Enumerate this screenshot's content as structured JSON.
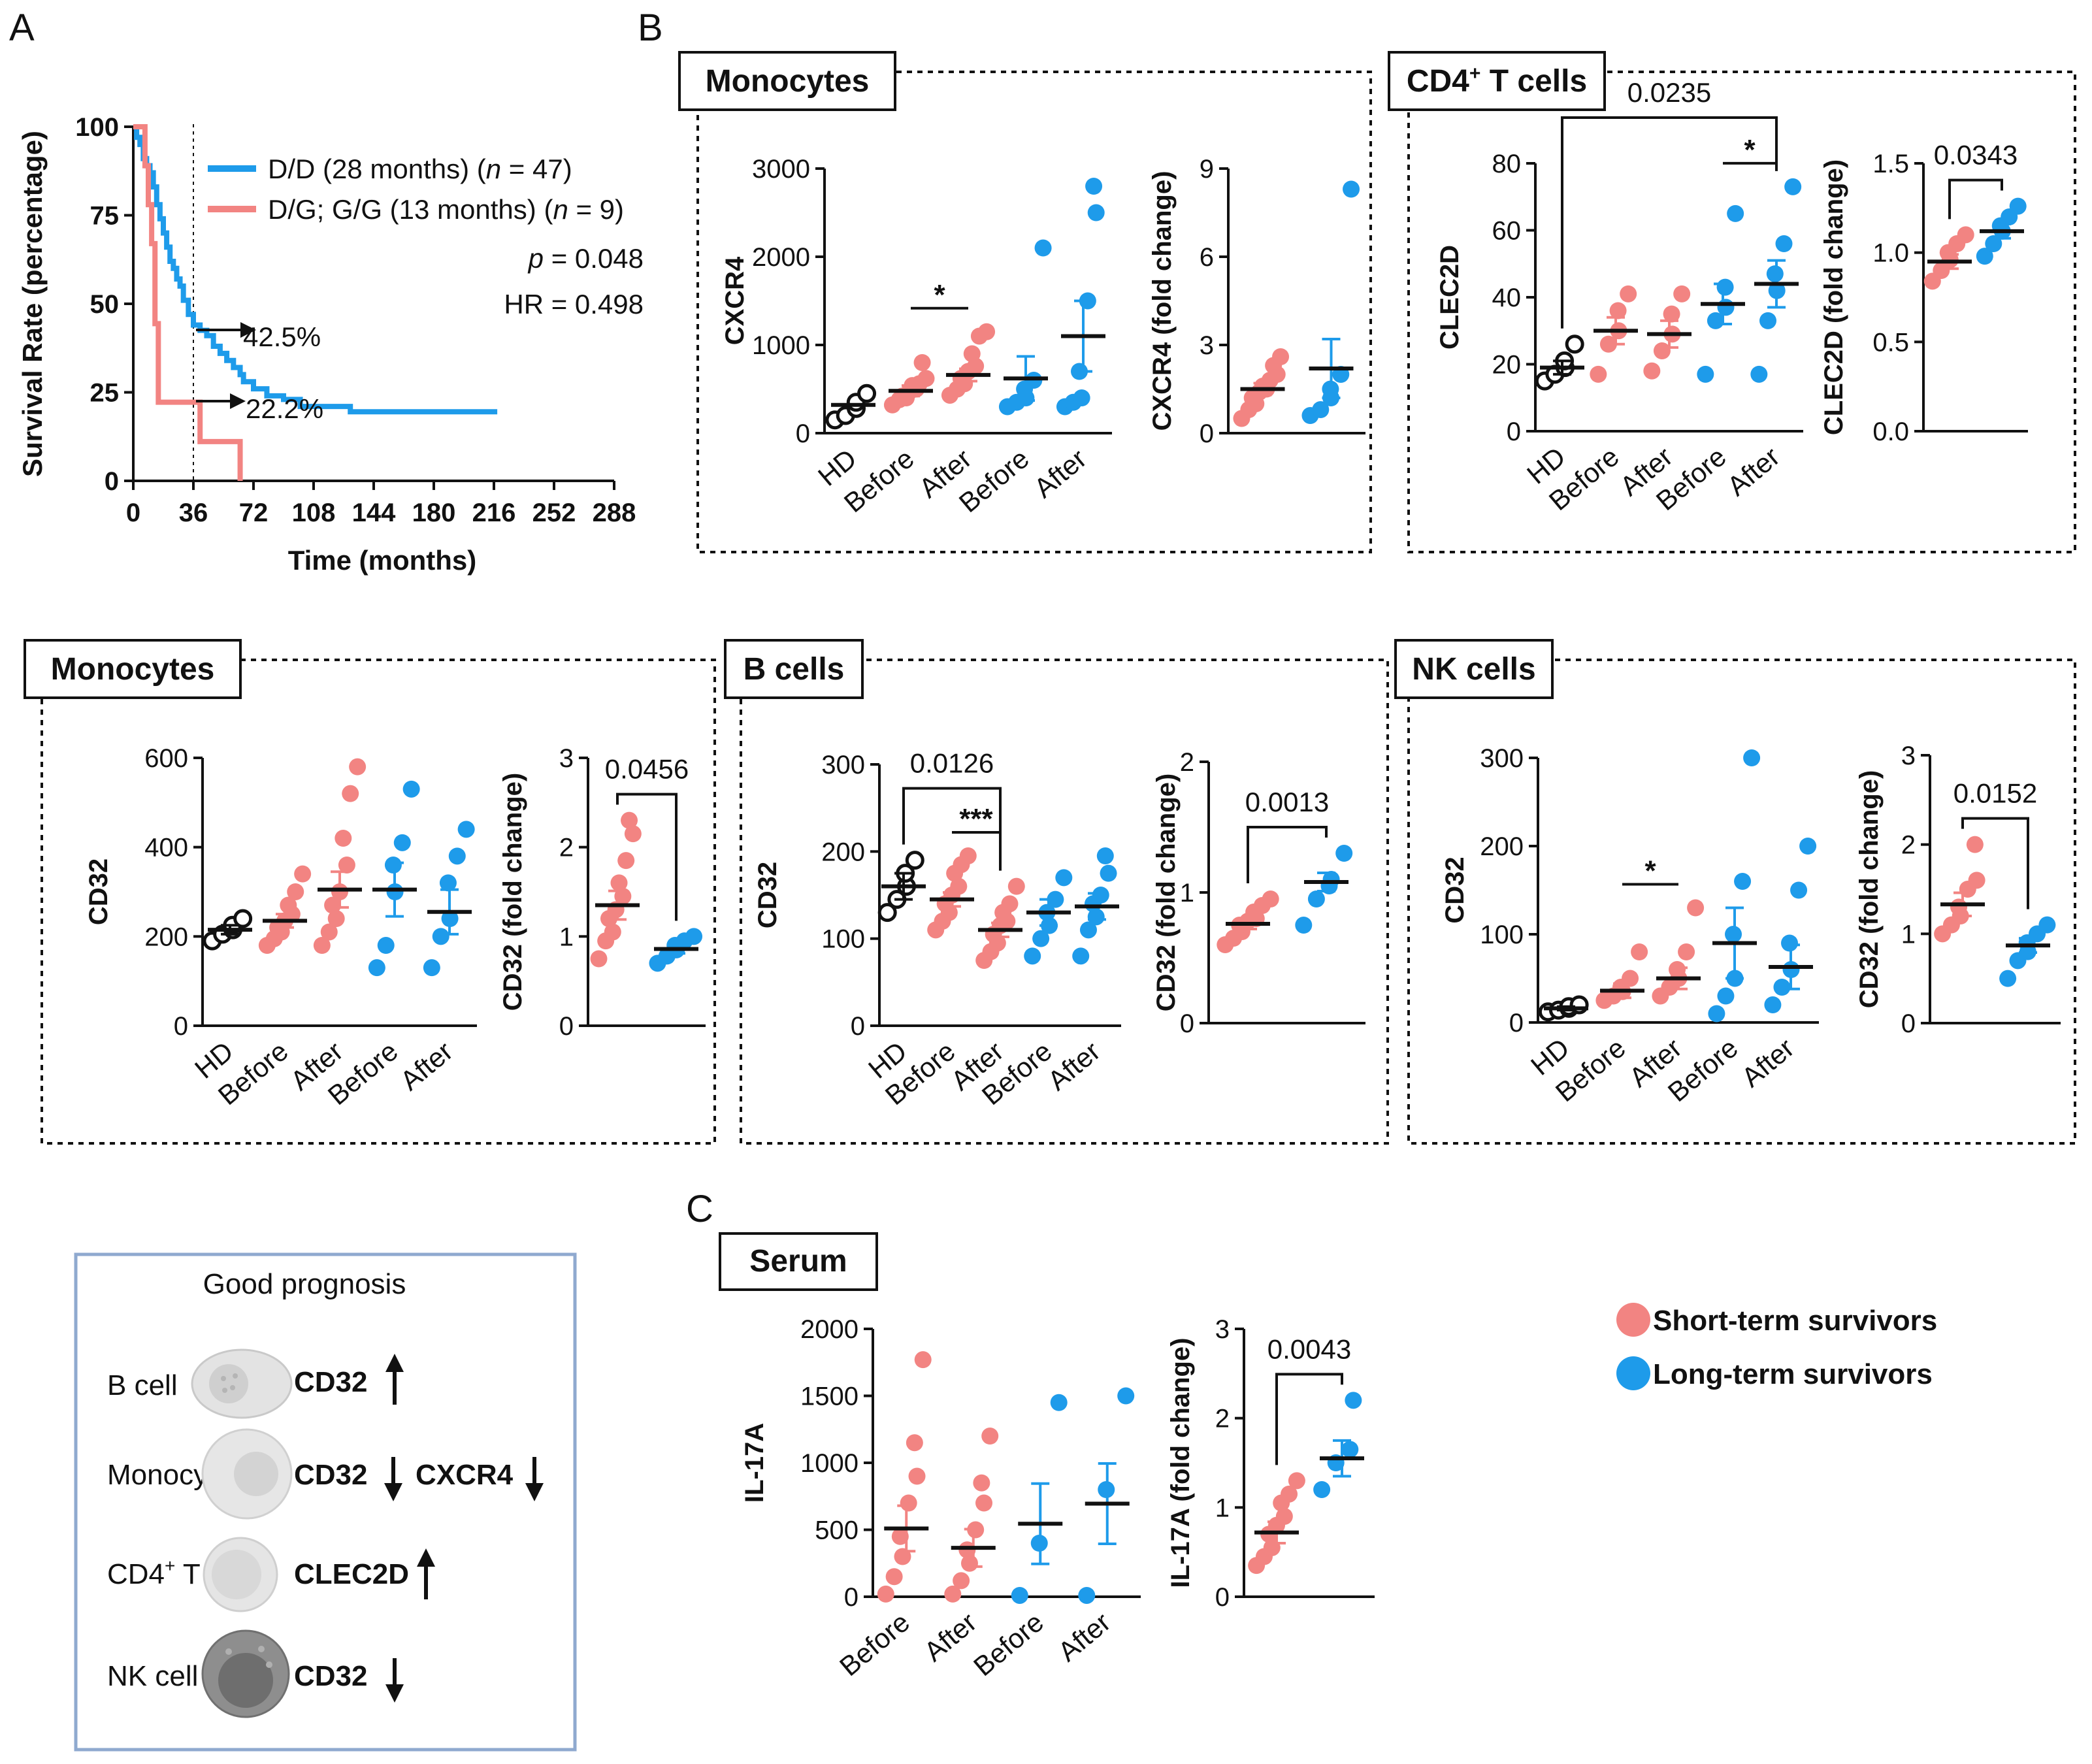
{
  "colors": {
    "short": "#F28482",
    "long": "#1E9BEA",
    "hd": "#111111",
    "frame_blue": "#8FA9CF"
  },
  "panel_labels": {
    "a": "A",
    "b": "B",
    "c": "C"
  },
  "panelA": {
    "chart_type": "step",
    "y_label": "Survival Rate (percentage)",
    "x_label": "Time (months)",
    "x_ticks": [
      "0",
      "36",
      "72",
      "108",
      "144",
      "180",
      "216",
      "252",
      "288"
    ],
    "y_ticks": [
      "0",
      "25",
      "50",
      "75",
      "100"
    ],
    "legend": [
      {
        "prefix": "D/D (28 months) (",
        "n": "n",
        "suffix": " = 47)"
      },
      {
        "prefix": "D/G; G/G (13 months) (",
        "n": "n",
        "suffix": " = 9)"
      }
    ],
    "p_value": {
      "label": "p",
      "value": " = 0.048"
    },
    "hr": "HR = 0.498",
    "annotations": [
      "42.5%",
      "22.2%"
    ],
    "series": [
      {
        "name": "D/D (28 months)",
        "color": "long",
        "steps": [
          [
            0,
            100
          ],
          [
            2,
            97
          ],
          [
            4,
            95
          ],
          [
            6,
            91
          ],
          [
            8,
            89
          ],
          [
            10,
            87
          ],
          [
            12,
            83
          ],
          [
            14,
            78
          ],
          [
            16,
            74
          ],
          [
            18,
            70
          ],
          [
            20,
            66
          ],
          [
            22,
            62
          ],
          [
            24,
            60
          ],
          [
            26,
            57
          ],
          [
            28,
            55
          ],
          [
            30,
            51
          ],
          [
            33,
            47
          ],
          [
            36,
            44
          ],
          [
            40,
            42.5
          ],
          [
            44,
            41
          ],
          [
            48,
            38
          ],
          [
            52,
            36
          ],
          [
            56,
            34
          ],
          [
            60,
            32
          ],
          [
            64,
            30
          ],
          [
            66,
            28
          ],
          [
            72,
            26
          ],
          [
            76,
            26
          ],
          [
            80,
            24
          ],
          [
            86,
            24
          ],
          [
            90,
            23
          ],
          [
            96,
            23
          ],
          [
            100,
            21
          ],
          [
            110,
            21
          ],
          [
            115,
            21
          ],
          [
            120,
            21
          ],
          [
            125,
            21
          ],
          [
            130,
            19.5
          ],
          [
            140,
            19.5
          ],
          [
            160,
            19.5
          ],
          [
            180,
            19.5
          ],
          [
            200,
            19.5
          ],
          [
            218,
            19.5
          ]
        ]
      },
      {
        "name": "D/G; G/G (13 months)",
        "color": "short",
        "steps": [
          [
            0,
            100
          ],
          [
            5,
            100
          ],
          [
            7,
            89
          ],
          [
            9,
            78
          ],
          [
            11,
            67
          ],
          [
            13,
            44.4
          ],
          [
            15,
            22.2
          ],
          [
            36,
            22.2
          ],
          [
            40,
            11.1
          ],
          [
            62,
            11.1
          ],
          [
            64,
            0
          ]
        ]
      }
    ]
  },
  "charts": [
    {
      "id": "mono_cxcr4",
      "group": "Monocytes",
      "ylabel": "CXCR4",
      "ylim": [
        0,
        3000
      ],
      "yticks": [
        "0",
        "1000",
        "2000",
        "3000"
      ],
      "categories": [
        "HD",
        "Before",
        "After",
        "Before",
        "After"
      ],
      "points": [
        [
          150,
          200,
          280,
          350,
          450
        ],
        [
          320,
          380,
          400,
          420,
          470,
          500,
          540,
          560,
          620,
          800
        ],
        [
          430,
          500,
          560,
          620,
          700,
          760,
          900,
          1100,
          1150
        ],
        [
          300,
          350,
          400,
          500,
          600,
          2100
        ],
        [
          300,
          350,
          400,
          700,
          1500,
          2500,
          2800
        ]
      ],
      "means": [
        320,
        480,
        660,
        620,
        1100
      ],
      "sems": [
        null,
        60,
        70,
        250,
        400
      ],
      "sig": [
        {
          "a": 1,
          "b": 2,
          "label": "*"
        }
      ]
    },
    {
      "id": "mono_cxcr4_fc",
      "group": "Monocytes",
      "ylabel": "CXCR4 (fold change)",
      "ylim": [
        0,
        9
      ],
      "yticks": [
        "0",
        "3",
        "6",
        "9"
      ],
      "categories": [
        "",
        ""
      ],
      "points": [
        [
          0.5,
          0.8,
          1.0,
          1.2,
          1.4,
          1.5,
          1.6,
          1.8,
          2.0,
          2.3,
          2.6
        ],
        [
          0.6,
          0.8,
          1.2,
          1.5,
          2.0,
          8.3
        ]
      ],
      "means": [
        1.5,
        2.2
      ],
      "sems": [
        0.2,
        1.0
      ],
      "sig": []
    },
    {
      "id": "cd4_clec2d",
      "group": "CD4+ T cells",
      "ylabel": "CLEC2D",
      "ylim": [
        0,
        80
      ],
      "yticks": [
        "0",
        "20",
        "40",
        "60",
        "80"
      ],
      "categories": [
        "HD",
        "Before",
        "After",
        "Before",
        "After"
      ],
      "points": [
        [
          15,
          17,
          19,
          21,
          26
        ],
        [
          17,
          26,
          30,
          36,
          41
        ],
        [
          18,
          24,
          29,
          35,
          41
        ],
        [
          17,
          33,
          37,
          43,
          65
        ],
        [
          17,
          33,
          42,
          47,
          56,
          73
        ]
      ],
      "means": [
        19,
        30,
        29,
        38,
        44
      ],
      "sems": [
        2,
        4,
        4,
        6,
        7
      ],
      "sig": [
        {
          "a": 3,
          "b": 4,
          "label": "*"
        }
      ],
      "bracket": {
        "a": 0,
        "b": 4,
        "label": "0.0235"
      }
    },
    {
      "id": "cd4_clec2d_fc",
      "group": "CD4+ T cells",
      "ylabel": "CLEC2D (fold change)",
      "ylim": [
        0,
        1.5
      ],
      "yticks": [
        "0.0",
        "0.5",
        "1.0",
        "1.5"
      ],
      "categories": [
        "",
        ""
      ],
      "points": [
        [
          0.84,
          0.9,
          0.96,
          1.0,
          1.05,
          1.1
        ],
        [
          0.98,
          1.05,
          1.12,
          1.15,
          1.2,
          1.26
        ]
      ],
      "means": [
        0.95,
        1.12
      ],
      "sems": [
        0.04,
        0.04
      ],
      "bracket": {
        "a": 0,
        "b": 1,
        "label": "0.0343"
      }
    },
    {
      "id": "mono_cd32",
      "group": "Monocytes",
      "ylabel": "CD32",
      "ylim": [
        0,
        600
      ],
      "yticks": [
        "0",
        "200",
        "400",
        "600"
      ],
      "categories": [
        "HD",
        "Before",
        "After",
        "Before",
        "After"
      ],
      "points": [
        [
          190,
          205,
          215,
          225,
          240
        ],
        [
          180,
          195,
          210,
          220,
          235,
          250,
          270,
          300,
          340
        ],
        [
          180,
          210,
          240,
          270,
          300,
          360,
          420,
          520,
          580
        ],
        [
          130,
          180,
          300,
          360,
          410,
          530
        ],
        [
          130,
          200,
          240,
          320,
          380,
          440
        ]
      ],
      "means": [
        215,
        235,
        305,
        305,
        255
      ],
      "sems": [
        10,
        15,
        40,
        60,
        50
      ]
    },
    {
      "id": "mono_cd32_fc",
      "group": "Monocytes",
      "ylabel": "CD32 (fold change)",
      "ylim": [
        0,
        3
      ],
      "yticks": [
        "0",
        "1",
        "2",
        "3"
      ],
      "categories": [
        "",
        ""
      ],
      "points": [
        [
          0.75,
          0.95,
          1.05,
          1.2,
          1.3,
          1.45,
          1.6,
          1.85,
          2.15,
          2.3
        ],
        [
          0.7,
          0.78,
          0.85,
          0.9,
          0.95,
          1.0
        ]
      ],
      "means": [
        1.35,
        0.86
      ],
      "sems": [
        0.16,
        0.05
      ],
      "bracket": {
        "a": 0,
        "b": 1,
        "label": "0.0456"
      }
    },
    {
      "id": "b_cd32",
      "group": "B cells",
      "ylabel": "CD32",
      "ylim": [
        0,
        300
      ],
      "yticks": [
        "0",
        "100",
        "200",
        "300"
      ],
      "categories": [
        "HD",
        "Before",
        "After",
        "Before",
        "After"
      ],
      "points": [
        [
          130,
          145,
          160,
          175,
          190
        ],
        [
          110,
          120,
          130,
          140,
          150,
          160,
          175,
          185,
          195
        ],
        [
          75,
          85,
          95,
          105,
          115,
          120,
          130,
          140,
          160
        ],
        [
          80,
          100,
          115,
          130,
          145,
          170
        ],
        [
          80,
          110,
          125,
          140,
          150,
          175,
          195
        ]
      ],
      "means": [
        160,
        145,
        110,
        130,
        137
      ],
      "sems": [
        15,
        8,
        8,
        15,
        15
      ],
      "sig": [
        {
          "a": 1,
          "b": 2,
          "label": "***"
        }
      ],
      "bracket": {
        "a": 0,
        "b": 2,
        "label": "0.0126"
      }
    },
    {
      "id": "b_cd32_fc",
      "group": "B cells",
      "ylabel": "CD32 (fold change)",
      "ylim": [
        0,
        2
      ],
      "yticks": [
        "0",
        "1",
        "2"
      ],
      "categories": [
        "",
        ""
      ],
      "points": [
        [
          0.6,
          0.65,
          0.7,
          0.75,
          0.78,
          0.8,
          0.85,
          0.9,
          0.95
        ],
        [
          0.75,
          0.95,
          1.05,
          1.1,
          1.3
        ]
      ],
      "means": [
        0.76,
        1.08
      ],
      "sems": [
        0.04,
        0.07
      ],
      "bracket": {
        "a": 0,
        "b": 1,
        "label": "0.0013"
      }
    },
    {
      "id": "nk_cd32",
      "group": "NK cells",
      "ylabel": "CD32",
      "ylim": [
        0,
        300
      ],
      "yticks": [
        "0",
        "100",
        "200",
        "300"
      ],
      "categories": [
        "HD",
        "Before",
        "After",
        "Before",
        "After"
      ],
      "points": [
        [
          12,
          14,
          16,
          18,
          20
        ],
        [
          25,
          30,
          35,
          40,
          50,
          80
        ],
        [
          30,
          40,
          50,
          60,
          80,
          130
        ],
        [
          10,
          30,
          50,
          100,
          160,
          300
        ],
        [
          20,
          40,
          60,
          90,
          150,
          200
        ]
      ],
      "means": [
        16,
        36,
        50,
        90,
        63
      ],
      "sems": [
        2,
        8,
        12,
        40,
        25
      ],
      "sig": [
        {
          "a": 1,
          "b": 2,
          "label": "*"
        }
      ]
    },
    {
      "id": "nk_cd32_fc",
      "group": "NK cells",
      "ylabel": "CD32 (fold change)",
      "ylim": [
        0,
        3
      ],
      "yticks": [
        "0",
        "1",
        "2",
        "3"
      ],
      "categories": [
        "",
        ""
      ],
      "points": [
        [
          1.0,
          1.1,
          1.2,
          1.3,
          1.5,
          1.6,
          2.0
        ],
        [
          0.5,
          0.7,
          0.8,
          0.9,
          1.0,
          1.1
        ]
      ],
      "means": [
        1.33,
        0.87
      ],
      "sems": [
        0.13,
        0.08
      ],
      "bracket": {
        "a": 0,
        "b": 1,
        "label": "0.0152"
      }
    },
    {
      "id": "serum_il17a",
      "group": "Serum",
      "ylabel": "IL-17A",
      "ylim": [
        0,
        2000
      ],
      "yticks": [
        "0",
        "500",
        "1000",
        "1500",
        "2000"
      ],
      "categories": [
        "Before",
        "After",
        "Before",
        "After"
      ],
      "points": [
        [
          20,
          150,
          300,
          450,
          700,
          900,
          1150,
          1770
        ],
        [
          20,
          120,
          250,
          350,
          500,
          700,
          850,
          1200
        ],
        [
          10,
          400,
          1450
        ],
        [
          10,
          800,
          1500
        ]
      ],
      "means": [
        510,
        365,
        545,
        695
      ],
      "sems": [
        170,
        140,
        300,
        300
      ]
    },
    {
      "id": "serum_il17a_fc",
      "group": "Serum",
      "ylabel": "IL-17A (fold change)",
      "ylim": [
        0,
        3
      ],
      "yticks": [
        "0",
        "1",
        "2",
        "3"
      ],
      "categories": [
        "",
        ""
      ],
      "points": [
        [
          0.35,
          0.45,
          0.55,
          0.7,
          0.8,
          0.9,
          1.05,
          1.15,
          1.3
        ],
        [
          1.2,
          1.5,
          1.65,
          2.2
        ]
      ],
      "means": [
        0.72,
        1.55
      ],
      "sems": [
        0.12,
        0.2
      ],
      "bracket": {
        "a": 0,
        "b": 1,
        "label": "0.0043"
      }
    }
  ],
  "group_titles": {
    "mono_top": "Monocytes",
    "cd4": {
      "base": "CD4",
      "sup": "+",
      "rest": " T cells"
    },
    "mono_bottom": "Monocytes",
    "b": "B cells",
    "nk": "NK cells",
    "serum": "Serum"
  },
  "legend_c": [
    {
      "label": "Short-term survivors",
      "color": "short"
    },
    {
      "label": "Long-term survivors",
      "color": "long"
    }
  ],
  "summary": {
    "title": "Good prognosis",
    "rows": [
      {
        "cell": "B cell",
        "markers": [
          {
            "name": "CD32",
            "dir": "up"
          }
        ]
      },
      {
        "cell": "Monocyte",
        "markers": [
          {
            "name": "CD32",
            "dir": "down"
          },
          {
            "name": "CXCR4",
            "dir": "down"
          }
        ]
      },
      {
        "cell": "CD4",
        "cell_sup": "+",
        "cell_rest": " T cell",
        "markers": [
          {
            "name": "CLEC2D",
            "dir": "up"
          }
        ]
      },
      {
        "cell": "NK cell",
        "markers": [
          {
            "name": "CD32",
            "dir": "down"
          }
        ]
      }
    ]
  }
}
